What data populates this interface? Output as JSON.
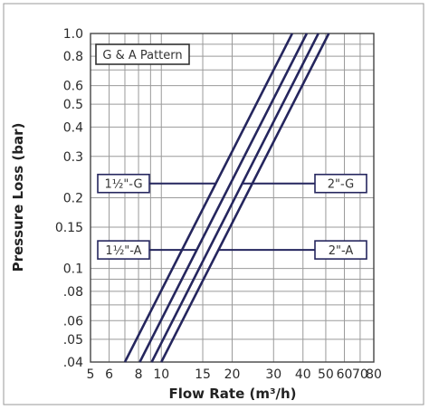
{
  "chart_data": {
    "type": "line",
    "title": "",
    "xlabel": "Flow Rate (m³/h)",
    "ylabel": "Pressure Loss (bar)",
    "x_scale": "log",
    "y_scale": "log",
    "xlim": [
      5,
      80
    ],
    "ylim": [
      0.04,
      1.0
    ],
    "grid": true,
    "x_ticks": [
      5,
      6,
      7,
      8,
      9,
      10,
      15,
      20,
      30,
      40,
      50,
      60,
      70,
      80
    ],
    "x_tick_labels": [
      "5",
      "6",
      "",
      "8",
      "",
      "10",
      "15",
      "20",
      "30",
      "40",
      "50",
      "60",
      "70",
      "80"
    ],
    "y_ticks": [
      0.04,
      0.05,
      0.06,
      0.07,
      0.08,
      0.09,
      0.1,
      0.15,
      0.2,
      0.3,
      0.4,
      0.5,
      0.6,
      0.7,
      0.8,
      0.9,
      1.0
    ],
    "y_tick_labels": [
      ".04",
      ".05",
      ".06",
      "",
      ".08",
      "",
      "0.1",
      "0.15",
      "0.2",
      "0.3",
      "0.4",
      "0.5",
      "0.6",
      "",
      "0.8",
      "",
      "1.0"
    ],
    "legend_box": "G & A Pattern",
    "series": [
      {
        "name": "1½\"-G",
        "x": [
          7.0,
          36.0
        ],
        "y": [
          0.04,
          1.0
        ]
      },
      {
        "name": "1½\"-A",
        "x": [
          8.1,
          41.5
        ],
        "y": [
          0.04,
          1.0
        ]
      },
      {
        "name": "2\"-G",
        "x": [
          9.1,
          46.5
        ],
        "y": [
          0.04,
          1.0
        ]
      },
      {
        "name": "2\"-A",
        "x": [
          10.0,
          51.5
        ],
        "y": [
          0.04,
          1.0
        ]
      }
    ],
    "annotations": [
      {
        "text": "1½\"-G",
        "side": "left",
        "series": 0,
        "y": 0.23
      },
      {
        "text": "1½\"-A",
        "side": "left",
        "series": 1,
        "y": 0.12
      },
      {
        "text": "2\"-G",
        "side": "right",
        "series": 2,
        "y": 0.23
      },
      {
        "text": "2\"-A",
        "side": "right",
        "series": 3,
        "y": 0.12
      }
    ],
    "colors": {
      "line": "#25265e",
      "grid": "#9a9a9a",
      "frame": "#444444"
    }
  }
}
